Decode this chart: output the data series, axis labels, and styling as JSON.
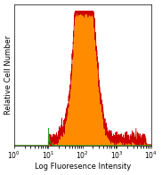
{
  "title": "",
  "xlabel": "Log Fluoresence Intensity",
  "ylabel": "Relative Cell Number",
  "xlim": [
    1,
    10000
  ],
  "ylim": [
    0,
    1.05
  ],
  "background_color": "#ffffff",
  "plot_bg_color": "#ffffff",
  "xlabel_fontsize": 6.0,
  "ylabel_fontsize": 6.0,
  "tick_fontsize": 5.5,
  "orange_fill_color": "#FF8C00",
  "orange_line_color": "#CC0000",
  "green_line_color": "#22AA22",
  "green_fill_color": "#aaffaa",
  "seed": 42
}
